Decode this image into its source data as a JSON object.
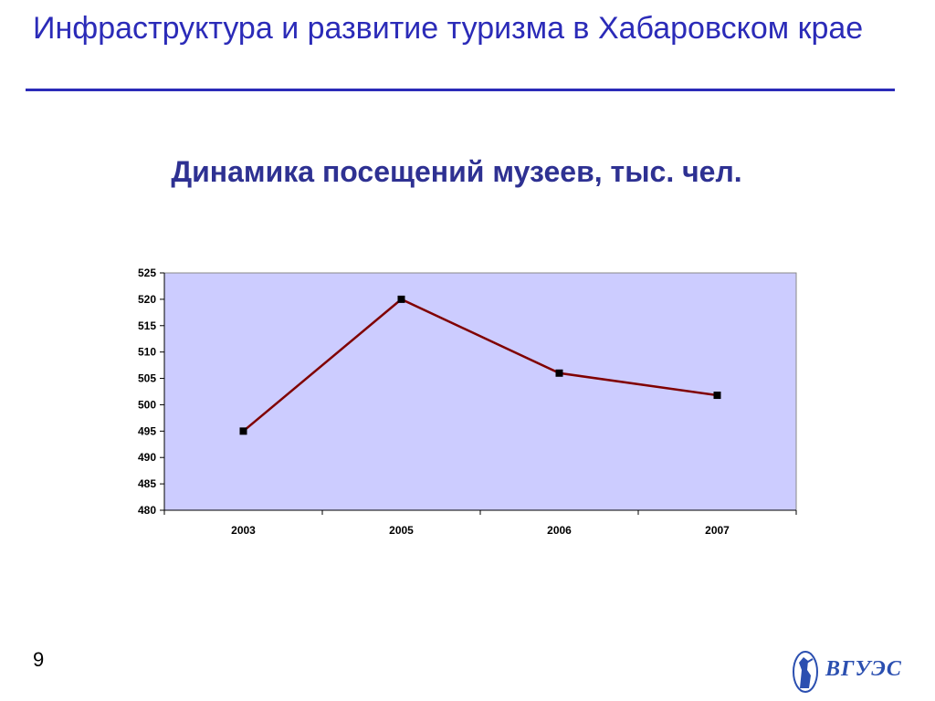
{
  "slide": {
    "title": "Инфраструктура и развитие туризма в Хабаровском крае",
    "subtitle": "Динамика посещений музеев, тыс. чел.",
    "page_number": "9",
    "logo_text": "ВГУЭС"
  },
  "colors": {
    "title": "#2b2bb8",
    "plot_background": "#ccccff",
    "series_line": "#800000",
    "marker": "#000000"
  },
  "chart_data": {
    "type": "line",
    "categories": [
      "2003",
      "2005",
      "2006",
      "2007"
    ],
    "series": [
      {
        "values": [
          495,
          520,
          506,
          501.8
        ]
      }
    ],
    "title": "",
    "xlabel": "",
    "ylabel": "",
    "ylim": [
      480,
      525
    ],
    "yticks": [
      "480",
      "485",
      "490",
      "495",
      "500",
      "505",
      "510",
      "515",
      "520",
      "525"
    ],
    "grid": false,
    "legend": "none"
  }
}
